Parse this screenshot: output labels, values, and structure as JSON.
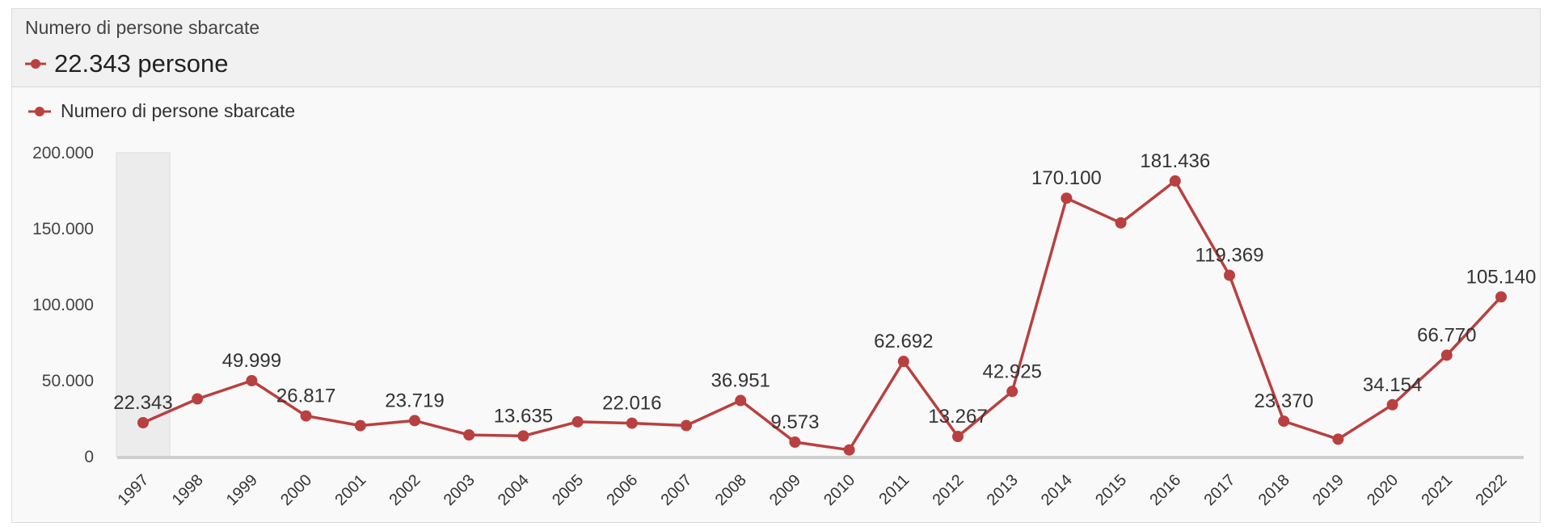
{
  "header": {
    "title": "Numero di persone sbarcate",
    "selected_value": "22.343 persone"
  },
  "legend": {
    "label": "Numero di persone sbarcate"
  },
  "colors": {
    "series": "#b94040",
    "highlight": "#ececec"
  },
  "chart_data": {
    "type": "line",
    "title": "",
    "xlabel": "",
    "ylabel": "",
    "ylim": [
      0,
      200000
    ],
    "yticks": [
      0,
      50000,
      100000,
      150000,
      200000
    ],
    "ytick_labels": [
      "0",
      "50.000",
      "100.000",
      "150.000",
      "200.000"
    ],
    "grid": false,
    "legend_position": "top-left",
    "highlighted_category": "1997",
    "categories": [
      "1997",
      "1998",
      "1999",
      "2000",
      "2001",
      "2002",
      "2003",
      "2004",
      "2005",
      "2006",
      "2007",
      "2008",
      "2009",
      "2010",
      "2011",
      "2012",
      "2013",
      "2014",
      "2015",
      "2016",
      "2017",
      "2018",
      "2019",
      "2020",
      "2021",
      "2022"
    ],
    "series": [
      {
        "name": "Numero di persone sbarcate",
        "values": [
          22343,
          38000,
          49999,
          26817,
          20400,
          23719,
          14300,
          13635,
          22939,
          22016,
          20455,
          36951,
          9573,
          4406,
          62692,
          13267,
          42925,
          170100,
          153842,
          181436,
          119369,
          23370,
          11471,
          34154,
          66770,
          105140
        ],
        "data_labels": [
          "22.343",
          "",
          "49.999",
          "26.817",
          "",
          "23.719",
          "",
          "13.635",
          "",
          "22.016",
          "",
          "36.951",
          "9.573",
          "",
          "62.692",
          "13.267",
          "42.925",
          "170.100",
          "",
          "181.436",
          "119.369",
          "23.370",
          "",
          "34.154",
          "66.770",
          "105.140"
        ]
      }
    ]
  }
}
